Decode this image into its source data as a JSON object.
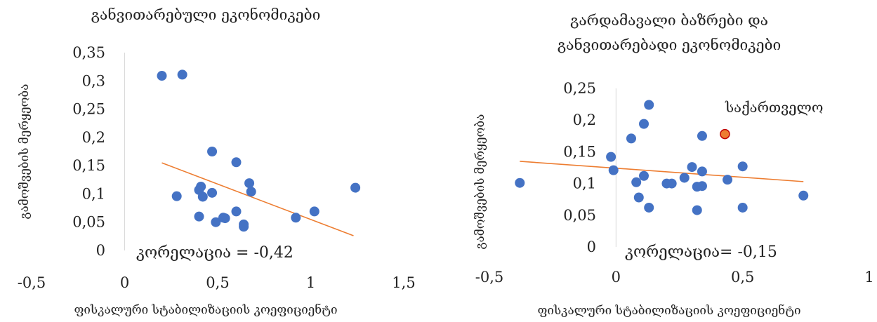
{
  "chart_data": [
    {
      "type": "scatter",
      "title": [
        "განვითარებული ეკონომიკები"
      ],
      "xlabel": "ფისკალური სტაბილიზაციის კოეფიციენტი",
      "ylabel": "გამოშვების მერყეობა",
      "xlim": [
        -0.5,
        1.5
      ],
      "ylim": [
        0,
        0.35
      ],
      "xticks": [
        "-0,5",
        "0",
        "0,5",
        "1",
        "1,5"
      ],
      "yticks": [
        "0",
        "0,05",
        "0,1",
        "0,15",
        "0,2",
        "0,25",
        "0,3",
        "0,35"
      ],
      "annotation": "კორელაცია = -0,42",
      "trendline": {
        "x": [
          0.2,
          1.23
        ],
        "y": [
          0.155,
          0.026
        ]
      },
      "colors": {
        "points": "#4472C4",
        "trend": "#ED7D31"
      },
      "points": [
        {
          "x": 0.2,
          "y": 0.309
        },
        {
          "x": 0.31,
          "y": 0.311
        },
        {
          "x": 0.47,
          "y": 0.175
        },
        {
          "x": 0.6,
          "y": 0.156
        },
        {
          "x": 0.28,
          "y": 0.096
        },
        {
          "x": 0.4,
          "y": 0.107
        },
        {
          "x": 0.41,
          "y": 0.113
        },
        {
          "x": 0.42,
          "y": 0.095
        },
        {
          "x": 0.47,
          "y": 0.102
        },
        {
          "x": 0.4,
          "y": 0.06
        },
        {
          "x": 0.49,
          "y": 0.05
        },
        {
          "x": 0.53,
          "y": 0.058
        },
        {
          "x": 0.54,
          "y": 0.057
        },
        {
          "x": 0.6,
          "y": 0.069
        },
        {
          "x": 0.64,
          "y": 0.046
        },
        {
          "x": 0.64,
          "y": 0.042
        },
        {
          "x": 0.67,
          "y": 0.119
        },
        {
          "x": 0.68,
          "y": 0.104
        },
        {
          "x": 0.92,
          "y": 0.058
        },
        {
          "x": 1.02,
          "y": 0.069
        },
        {
          "x": 1.24,
          "y": 0.111
        }
      ]
    },
    {
      "type": "scatter",
      "title": [
        "გარდამავალი ბაზრები და",
        "განვითარებადი ეკონომიკები"
      ],
      "xlabel": "ფისკალური სტაბილიზაციის კოეფიციენტი",
      "ylabel": "გამოშვების მერყეობა",
      "xlim": [
        -0.5,
        1
      ],
      "ylim": [
        0,
        0.25
      ],
      "xticks": [
        "-0,5",
        "0",
        "0,5",
        "1"
      ],
      "yticks": [
        "0",
        "0,05",
        "0,1",
        "0,15",
        "0,2",
        "0,25"
      ],
      "annotation": "კორელაცია= -0,15",
      "highlight_label": "საქართველო",
      "trendline": {
        "x": [
          -0.38,
          0.74
        ],
        "y": [
          0.135,
          0.103
        ]
      },
      "colors": {
        "points": "#4472C4",
        "trend": "#ED7D31",
        "highlight": "#ED7D31",
        "highlight_edge": "#C00000"
      },
      "points": [
        {
          "x": -0.38,
          "y": 0.101
        },
        {
          "x": -0.02,
          "y": 0.142
        },
        {
          "x": -0.01,
          "y": 0.121
        },
        {
          "x": 0.06,
          "y": 0.171
        },
        {
          "x": 0.08,
          "y": 0.102
        },
        {
          "x": 0.09,
          "y": 0.078
        },
        {
          "x": 0.11,
          "y": 0.194
        },
        {
          "x": 0.11,
          "y": 0.112
        },
        {
          "x": 0.13,
          "y": 0.224
        },
        {
          "x": 0.13,
          "y": 0.062
        },
        {
          "x": 0.2,
          "y": 0.1
        },
        {
          "x": 0.22,
          "y": 0.1
        },
        {
          "x": 0.27,
          "y": 0.109
        },
        {
          "x": 0.3,
          "y": 0.126
        },
        {
          "x": 0.32,
          "y": 0.095
        },
        {
          "x": 0.32,
          "y": 0.058
        },
        {
          "x": 0.34,
          "y": 0.175
        },
        {
          "x": 0.34,
          "y": 0.119
        },
        {
          "x": 0.34,
          "y": 0.096
        },
        {
          "x": 0.44,
          "y": 0.106
        },
        {
          "x": 0.5,
          "y": 0.127
        },
        {
          "x": 0.5,
          "y": 0.062
        },
        {
          "x": 0.74,
          "y": 0.081
        }
      ],
      "highlight_point": {
        "x": 0.43,
        "y": 0.178
      }
    }
  ]
}
